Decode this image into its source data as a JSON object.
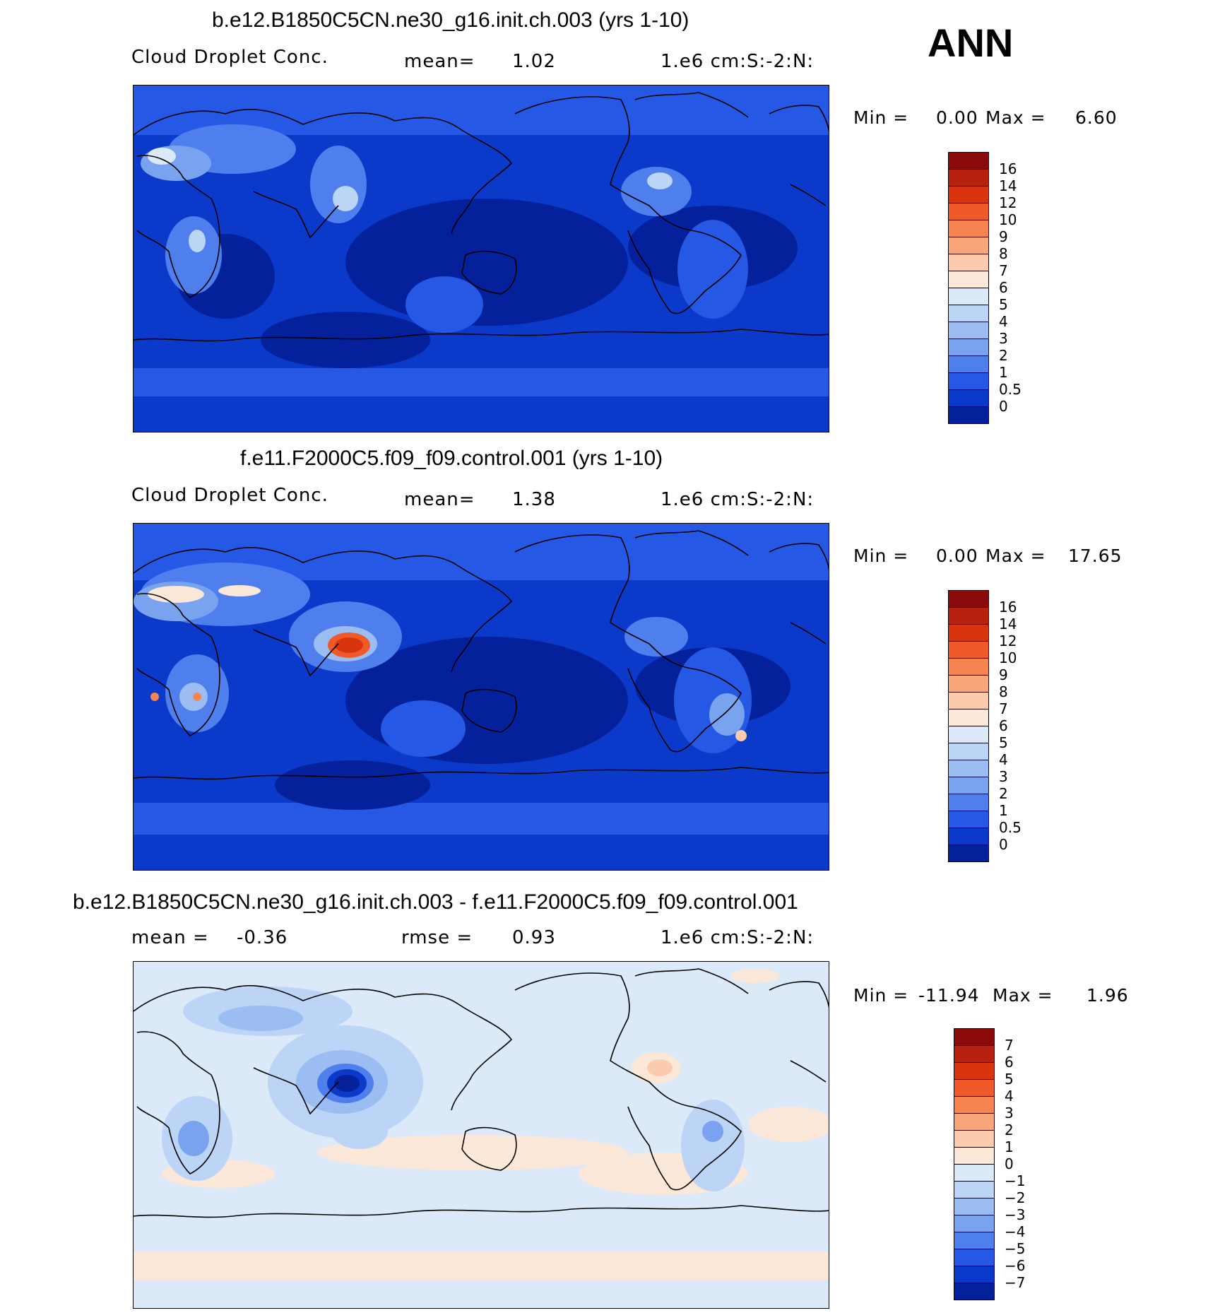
{
  "season": "ANN",
  "panels": [
    {
      "title": "b.e12.B1850C5CN.ne30_g16.init.ch.003 (yrs 1-10)",
      "left_label": "Cloud Droplet Conc.",
      "mid_label": "mean=",
      "mid_value": "1.02",
      "units": "1.e6 cm:S:-2:N:",
      "min_label": "Min =",
      "min_value": "0.00",
      "max_label": "Max =",
      "max_value": "6.60",
      "colorbar": {
        "levels": [
          "16",
          "14",
          "12",
          "10",
          "9",
          "8",
          "7",
          "6",
          "5",
          "4",
          "3",
          "2",
          "1",
          "0.5",
          "0"
        ],
        "colors": [
          "#8b0a0a",
          "#b5200f",
          "#d8350e",
          "#f05a28",
          "#f6844e",
          "#f8a67b",
          "#fbcbad",
          "#fce8d8",
          "#dbe9f9",
          "#bcd4f6",
          "#9bbdf2",
          "#7aa3ef",
          "#4f7fec",
          "#2658e6",
          "#0b39c9",
          "#04209a"
        ]
      }
    },
    {
      "title": "f.e11.F2000C5.f09_f09.control.001 (yrs 1-10)",
      "left_label": "Cloud Droplet Conc.",
      "mid_label": "mean=",
      "mid_value": "1.38",
      "units": "1.e6 cm:S:-2:N:",
      "min_label": "Min =",
      "min_value": "0.00",
      "max_label": "Max =",
      "max_value": "17.65",
      "colorbar": {
        "levels": [
          "16",
          "14",
          "12",
          "10",
          "9",
          "8",
          "7",
          "6",
          "5",
          "4",
          "3",
          "2",
          "1",
          "0.5",
          "0"
        ],
        "colors": [
          "#8b0a0a",
          "#b5200f",
          "#d8350e",
          "#f05a28",
          "#f6844e",
          "#f8a67b",
          "#fbcbad",
          "#fce8d8",
          "#dbe9f9",
          "#bcd4f6",
          "#9bbdf2",
          "#7aa3ef",
          "#4f7fec",
          "#2658e6",
          "#0b39c9",
          "#04209a"
        ]
      }
    },
    {
      "title": "b.e12.B1850C5CN.ne30_g16.init.ch.003 - f.e11.F2000C5.f09_f09.control.001",
      "left_label": "mean =",
      "left_value": "-0.36",
      "mid_label": "rmse =",
      "mid_value": "0.93",
      "units": "1.e6 cm:S:-2:N:",
      "min_label": "Min =",
      "min_value": "-11.94",
      "max_label": "Max =",
      "max_value": "1.96",
      "colorbar": {
        "levels": [
          "7",
          "6",
          "5",
          "4",
          "3",
          "2",
          "1",
          "0",
          "-1",
          "-2",
          "-3",
          "-4",
          "-5",
          "-6",
          "-7"
        ],
        "colors": [
          "#8b0a0a",
          "#b5200f",
          "#d8350e",
          "#f05a28",
          "#f6844e",
          "#f8a67b",
          "#fbcbad",
          "#fce8d8",
          "#dbe9f9",
          "#bcd4f6",
          "#9bbdf2",
          "#7aa3ef",
          "#4f7fec",
          "#2658e6",
          "#0b39c9",
          "#04209a"
        ]
      }
    }
  ]
}
